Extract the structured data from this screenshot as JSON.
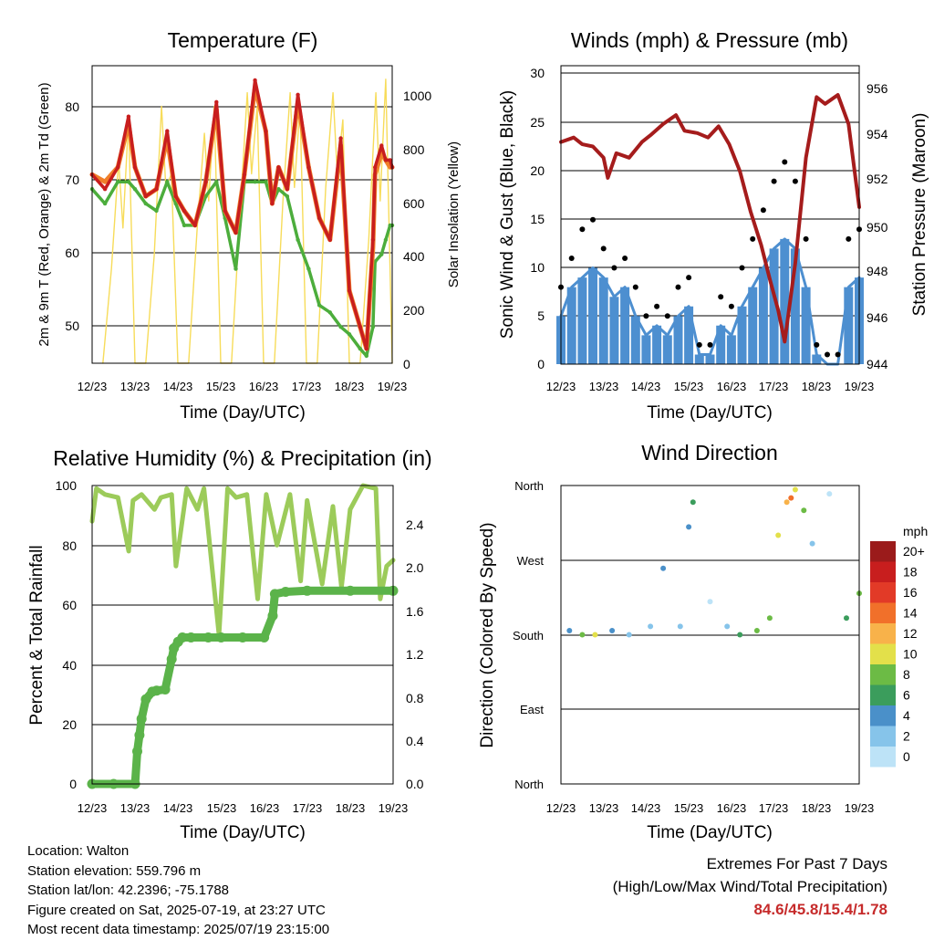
{
  "days": [
    "12/23",
    "13/23",
    "14/23",
    "15/23",
    "16/23",
    "17/23",
    "18/23",
    "19/23"
  ],
  "colors": {
    "temp_2m": "#c81e1e",
    "temp_9m": "#f07f2a",
    "dewpoint": "#4cad3c",
    "insolation": "#f7dc5a",
    "wind": "#4d8fd0",
    "gust": "#000000",
    "pressure": "#a51c1c",
    "rh": "#9ccb5a",
    "precip": "#5bb34a"
  },
  "panels": {
    "temp": {
      "title": "Temperature (F)",
      "ylabel_left": "2m & 9m T (Red, Orange) & 2m Td (Green)",
      "ylabel_right": "Solar Insolation (Yellow)",
      "xlabel": "Time (Day/UTC)",
      "yticks_left": [
        "50",
        "60",
        "70",
        "80"
      ],
      "yticks_right": [
        "0",
        "200",
        "400",
        "600",
        "800",
        "1000"
      ]
    },
    "wind": {
      "title": "Winds (mph) & Pressure (mb)",
      "ylabel_left": "Sonic Wind & Gust (Blue, Black)",
      "ylabel_right": "Station Pressure (Maroon)",
      "xlabel": "Time (Day/UTC)",
      "yticks_left": [
        "0",
        "5",
        "10",
        "15",
        "20",
        "25",
        "30"
      ],
      "yticks_right": [
        "944",
        "946",
        "948",
        "950",
        "952",
        "954",
        "956"
      ]
    },
    "rh": {
      "title": "Relative Humidity (%) & Precipitation (in)",
      "ylabel_left": "Percent & Total Rainfall",
      "xlabel": "Time (Day/UTC)",
      "yticks_left": [
        "0",
        "20",
        "40",
        "60",
        "80",
        "100"
      ],
      "yticks_right": [
        "0.0",
        "0.4",
        "0.8",
        "1.2",
        "1.6",
        "2.0",
        "2.4"
      ]
    },
    "dir": {
      "title": "Wind Direction",
      "ylabel_left": "Direction (Colored By Speed)",
      "xlabel": "Time (Day/UTC)",
      "yticks_left": [
        "North",
        "East",
        "South",
        "West",
        "North"
      ],
      "legend_title": "mph",
      "legend_labels": [
        "0",
        "2",
        "4",
        "6",
        "8",
        "10",
        "12",
        "14",
        "16",
        "18",
        "20+"
      ],
      "legend_colors": [
        "#bde3f7",
        "#86c4ea",
        "#4a90c9",
        "#3b9d5c",
        "#6cbb45",
        "#e3e04a",
        "#f8b24a",
        "#f1702a",
        "#e23a27",
        "#c81e1e",
        "#9b1b1b"
      ]
    }
  },
  "info": {
    "location": "Location: Walton",
    "elevation": "Station elevation: 559.796 m",
    "latlon": "Station lat/lon: 42.2396; -75.1788",
    "created": "Figure created on Sat, 2025-07-19, at 23:27 UTC",
    "recent": "Most recent data timestamp: 2025/07/19 23:15:00"
  },
  "extremes": {
    "heading": "Extremes For Past 7 Days",
    "subheading": "(High/Low/Max Wind/Total Precipitation)",
    "values": "84.6/45.8/15.4/1.78"
  },
  "chart_data": [
    {
      "type": "line",
      "title": "Temperature (F)",
      "xlabel": "Time (Day/UTC)",
      "ylabel": "2m & 9m T (Red, Orange) & 2m Td (Green)",
      "ylabel_right": "Solar Insolation (Yellow)",
      "xlim": [
        0,
        7
      ],
      "ylim": [
        45,
        86
      ],
      "ylim_right": [
        0,
        1100
      ],
      "series": [
        {
          "name": "2m T",
          "axis": "left",
          "color": "#c81e1e",
          "x": [
            0,
            0.3,
            0.6,
            0.85,
            1.0,
            1.25,
            1.5,
            1.75,
            1.95,
            2.15,
            2.4,
            2.65,
            2.9,
            3.1,
            3.35,
            3.55,
            3.8,
            4.05,
            4.2,
            4.35,
            4.55,
            4.8,
            5.05,
            5.3,
            5.55,
            5.8,
            6.0,
            6.25,
            6.4,
            6.55,
            6.6,
            6.75,
            6.85,
            6.95,
            7.0
          ],
          "y": [
            71,
            69,
            72,
            79,
            72,
            68,
            69,
            77,
            68,
            66,
            64,
            70,
            81,
            66,
            63,
            71,
            84,
            77,
            67,
            72,
            69,
            82,
            72,
            65,
            62,
            76,
            55,
            50,
            47,
            62,
            72,
            75,
            73,
            73,
            72
          ]
        },
        {
          "name": "9m T",
          "axis": "left",
          "color": "#f07f2a",
          "x": [
            0,
            0.3,
            0.6,
            0.85,
            1.0,
            1.25,
            1.5,
            1.75,
            1.95,
            2.15,
            2.4,
            2.65,
            2.9,
            3.1,
            3.35,
            3.55,
            3.8,
            4.05,
            4.2,
            4.35,
            4.55,
            4.8,
            5.05,
            5.3,
            5.55,
            5.8,
            6.0,
            6.25,
            6.4,
            6.55,
            6.6,
            6.75,
            6.85,
            6.95,
            7.0
          ],
          "y": [
            71,
            70,
            72,
            78,
            72,
            68,
            69,
            76,
            68,
            66,
            64,
            70,
            80,
            66,
            63,
            71,
            83,
            77,
            67,
            72,
            69,
            81,
            72,
            65,
            62,
            75,
            55,
            50,
            47,
            61,
            71,
            74,
            73,
            72,
            72
          ]
        },
        {
          "name": "2m Td",
          "axis": "left",
          "color": "#4cad3c",
          "x": [
            0,
            0.3,
            0.6,
            0.85,
            1.0,
            1.25,
            1.5,
            1.75,
            1.95,
            2.15,
            2.4,
            2.65,
            2.9,
            3.1,
            3.35,
            3.55,
            3.8,
            4.05,
            4.2,
            4.35,
            4.55,
            4.8,
            5.05,
            5.3,
            5.55,
            5.8,
            6.0,
            6.25,
            6.4,
            6.55,
            6.6,
            6.75,
            6.85,
            6.95,
            7.0
          ],
          "y": [
            69,
            67,
            70,
            70,
            69,
            67,
            66,
            70,
            67,
            64,
            64,
            68,
            70,
            65,
            58,
            70,
            70,
            70,
            67,
            69,
            68,
            62,
            58,
            53,
            52,
            50,
            49,
            47,
            46,
            50,
            59,
            60,
            62,
            64,
            64
          ]
        },
        {
          "name": "Solar Insolation",
          "axis": "right",
          "color": "#f7dc5a",
          "x": [
            0.25,
            0.45,
            0.62,
            0.72,
            0.85,
            1.0,
            1.25,
            1.45,
            1.62,
            1.72,
            1.85,
            2.0,
            2.25,
            2.45,
            2.62,
            2.72,
            2.85,
            3.0,
            3.25,
            3.45,
            3.62,
            3.72,
            3.85,
            4.0,
            4.25,
            4.45,
            4.62,
            4.72,
            4.85,
            5.0,
            5.25,
            5.45,
            5.62,
            5.72,
            5.85,
            6.0,
            6.25,
            6.45,
            6.62,
            6.72,
            6.85,
            7.0
          ],
          "y": [
            0,
            350,
            750,
            500,
            900,
            0,
            0,
            400,
            950,
            650,
            700,
            0,
            0,
            500,
            850,
            600,
            950,
            0,
            0,
            550,
            1000,
            700,
            950,
            0,
            0,
            600,
            1000,
            650,
            950,
            0,
            0,
            650,
            1000,
            700,
            900,
            0,
            0,
            450,
            1000,
            600,
            1050,
            0
          ]
        }
      ]
    },
    {
      "type": "line",
      "title": "Winds (mph) & Pressure (mb)",
      "xlabel": "Time (Day/UTC)",
      "ylabel": "Sonic Wind & Gust (Blue, Black)",
      "ylabel_right": "Station Pressure (Maroon)",
      "xlim": [
        0,
        7
      ],
      "ylim": [
        0,
        31
      ],
      "ylim_right": [
        944,
        957.3
      ],
      "series": [
        {
          "name": "Sonic Wind",
          "axis": "left",
          "color": "#4d8fd0",
          "x": [
            0,
            0.25,
            0.5,
            0.75,
            1.0,
            1.25,
            1.5,
            1.75,
            2.0,
            2.25,
            2.5,
            2.75,
            3.0,
            3.25,
            3.5,
            3.75,
            4.0,
            4.25,
            4.5,
            4.75,
            5.0,
            5.25,
            5.5,
            5.75,
            6.0,
            6.25,
            6.5,
            6.75,
            7.0
          ],
          "y": [
            5,
            8,
            9,
            10,
            9,
            7,
            8,
            5,
            3,
            4,
            3,
            5,
            6,
            1,
            1,
            4,
            3,
            6,
            8,
            10,
            12,
            13,
            12,
            8,
            1,
            0,
            0,
            8,
            9
          ]
        },
        {
          "name": "Gust",
          "axis": "left",
          "color": "#000000",
          "x": [
            0,
            0.25,
            0.5,
            0.75,
            1.0,
            1.25,
            1.5,
            1.75,
            2.0,
            2.25,
            2.5,
            2.75,
            3.0,
            3.25,
            3.5,
            3.75,
            4.0,
            4.25,
            4.5,
            4.75,
            5.0,
            5.25,
            5.5,
            5.75,
            6.0,
            6.25,
            6.5,
            6.75,
            7.0
          ],
          "y": [
            8,
            11,
            14,
            15,
            12,
            10,
            11,
            8,
            5,
            6,
            5,
            8,
            9,
            2,
            2,
            7,
            6,
            10,
            13,
            16,
            19,
            21,
            19,
            13,
            2,
            1,
            1,
            13,
            14
          ]
        },
        {
          "name": "Station Pressure",
          "axis": "right",
          "color": "#a51c1c",
          "x": [
            0,
            0.3,
            0.5,
            0.75,
            1.0,
            1.1,
            1.3,
            1.6,
            1.9,
            2.1,
            2.4,
            2.7,
            2.9,
            3.2,
            3.45,
            3.7,
            3.95,
            4.2,
            4.45,
            4.7,
            4.9,
            5.1,
            5.25,
            5.5,
            5.75,
            6.0,
            6.2,
            6.5,
            6.75,
            7.0
          ],
          "y": [
            953.9,
            954.1,
            953.8,
            953.7,
            953.2,
            952.3,
            953.4,
            953.2,
            953.9,
            954.2,
            954.7,
            955.1,
            954.4,
            954.3,
            954.1,
            954.6,
            953.8,
            952.6,
            950.8,
            949.3,
            947.8,
            946.4,
            945.0,
            948.5,
            953.2,
            955.9,
            955.6,
            956.0,
            954.7,
            951.0
          ]
        }
      ]
    },
    {
      "type": "line",
      "title": "Relative Humidity (%) & Precipitation (in)",
      "xlabel": "Time (Day/UTC)",
      "ylabel": "Percent & Total Rainfall",
      "xlim": [
        0,
        7
      ],
      "ylim": [
        0,
        100
      ],
      "ylim_right": [
        0,
        2.75
      ],
      "series": [
        {
          "name": "Relative Humidity",
          "axis": "left",
          "color": "#9ccb5a",
          "x": [
            0,
            0.1,
            0.3,
            0.6,
            0.85,
            0.95,
            1.15,
            1.45,
            1.6,
            1.85,
            1.95,
            2.2,
            2.45,
            2.6,
            2.95,
            3.15,
            3.35,
            3.6,
            3.85,
            4.05,
            4.3,
            4.6,
            4.85,
            5.0,
            5.35,
            5.6,
            5.8,
            6.0,
            6.3,
            6.6,
            6.7,
            6.85,
            7.0
          ],
          "y": [
            88,
            99,
            97,
            96,
            78,
            95,
            97,
            92,
            96,
            97,
            73,
            99,
            92,
            99,
            50,
            99,
            96,
            97,
            62,
            97,
            80,
            97,
            68,
            95,
            67,
            93,
            66,
            92,
            100,
            99,
            62,
            73,
            75
          ]
        },
        {
          "name": "Total Precipitation",
          "axis": "right",
          "color": "#5bb34a",
          "x": [
            0,
            0.5,
            1.0,
            1.05,
            1.1,
            1.15,
            1.25,
            1.4,
            1.5,
            1.7,
            1.85,
            1.9,
            2.0,
            2.1,
            2.3,
            2.7,
            3.0,
            3.5,
            4.0,
            4.2,
            4.25,
            4.5,
            5.0,
            6.0,
            7.0
          ],
          "y": [
            0.0,
            0.0,
            0.0,
            0.3,
            0.45,
            0.6,
            0.78,
            0.85,
            0.86,
            0.87,
            1.15,
            1.25,
            1.31,
            1.35,
            1.35,
            1.35,
            1.35,
            1.35,
            1.35,
            1.55,
            1.75,
            1.77,
            1.78,
            1.78,
            1.78
          ]
        }
      ]
    },
    {
      "type": "scatter",
      "title": "Wind Direction",
      "xlabel": "Time (Day/UTC)",
      "ylabel": "Direction (Colored By Speed)",
      "xlim": [
        0,
        7
      ],
      "ylim": [
        0,
        360
      ],
      "y_tick_labels": [
        "North",
        "East",
        "South",
        "West",
        "North"
      ],
      "series": [
        {
          "name": "Wind Direction",
          "x": [
            0.2,
            0.5,
            0.8,
            1.2,
            1.6,
            2.1,
            2.4,
            2.8,
            3.0,
            3.1,
            3.5,
            3.9,
            4.2,
            4.6,
            4.9,
            5.1,
            5.3,
            5.4,
            5.5,
            5.7,
            5.9,
            6.3,
            6.7,
            7.0
          ],
          "y": [
            185,
            180,
            180,
            185,
            180,
            190,
            260,
            190,
            310,
            340,
            220,
            190,
            180,
            185,
            200,
            300,
            340,
            345,
            355,
            330,
            290,
            350,
            200,
            230
          ],
          "speed": [
            5,
            8,
            10,
            4,
            3,
            2,
            4,
            2,
            4,
            6,
            1,
            3,
            6,
            8,
            8,
            10,
            12,
            14,
            10,
            8,
            2,
            1,
            7,
            8
          ]
        }
      ]
    }
  ]
}
